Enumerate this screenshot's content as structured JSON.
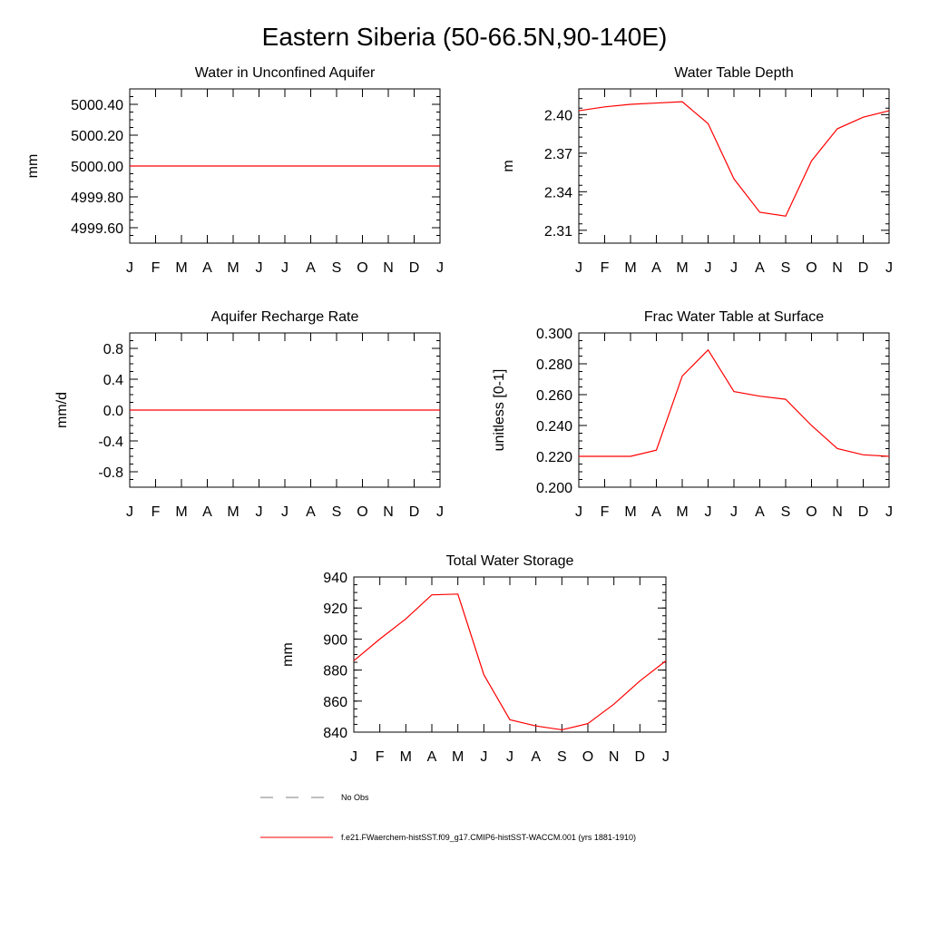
{
  "figure": {
    "title": "Eastern Siberia (50-66.5N,90-140E)",
    "line_color": "#ff0000",
    "obs_color": "#7f7f7f"
  },
  "legend": {
    "obs_label": "No Obs",
    "model_label": "f.e21.FWaerchem-histSST.f09_g17.CMIP6-histSST-WACCM.001 (yrs 1881-1910)"
  },
  "chart_data": [
    {
      "type": "line",
      "title": "Water in Unconfined Aquifer",
      "xlabel": "",
      "ylabel": "mm",
      "categories": [
        "J",
        "F",
        "M",
        "A",
        "M",
        "J",
        "J",
        "A",
        "S",
        "O",
        "N",
        "D",
        "J"
      ],
      "yticks": [
        "5000.40",
        "5000.20",
        "5000.00",
        "4999.80",
        "4999.60"
      ],
      "ylim": [
        4999.5,
        5000.5
      ],
      "series": [
        {
          "values": [
            5000.0,
            5000.0,
            5000.0,
            5000.0,
            5000.0,
            5000.0,
            5000.0,
            5000.0,
            5000.0,
            5000.0,
            5000.0,
            5000.0,
            5000.0
          ]
        }
      ]
    },
    {
      "type": "line",
      "title": "Water Table Depth",
      "xlabel": "",
      "ylabel": "m",
      "categories": [
        "J",
        "F",
        "M",
        "A",
        "M",
        "J",
        "J",
        "A",
        "S",
        "O",
        "N",
        "D",
        "J"
      ],
      "yticks": [
        "2.40",
        "2.37",
        "2.34",
        "2.31"
      ],
      "ylim": [
        2.3,
        2.42
      ],
      "series": [
        {
          "values": [
            2.403,
            2.406,
            2.408,
            2.409,
            2.41,
            2.393,
            2.35,
            2.324,
            2.321,
            2.364,
            2.389,
            2.398,
            2.403
          ]
        }
      ]
    },
    {
      "type": "line",
      "title": "Aquifer Recharge Rate",
      "xlabel": "",
      "ylabel": "mm/d",
      "categories": [
        "J",
        "F",
        "M",
        "A",
        "M",
        "J",
        "J",
        "A",
        "S",
        "O",
        "N",
        "D",
        "J"
      ],
      "yticks": [
        "0.8",
        "0.4",
        "0.0",
        "-0.4",
        "-0.8"
      ],
      "ylim": [
        -1.0,
        1.0
      ],
      "series": [
        {
          "values": [
            0,
            0,
            0,
            0,
            0,
            0,
            0,
            0,
            0,
            0,
            0,
            0,
            0
          ]
        }
      ]
    },
    {
      "type": "line",
      "title": "Frac Water Table at Surface",
      "xlabel": "",
      "ylabel": "unitless [0-1]",
      "categories": [
        "J",
        "F",
        "M",
        "A",
        "M",
        "J",
        "J",
        "A",
        "S",
        "O",
        "N",
        "D",
        "J"
      ],
      "yticks": [
        "0.300",
        "0.280",
        "0.260",
        "0.240",
        "0.220",
        "0.200"
      ],
      "ylim": [
        0.2,
        0.3
      ],
      "series": [
        {
          "values": [
            0.22,
            0.22,
            0.22,
            0.224,
            0.272,
            0.289,
            0.262,
            0.259,
            0.257,
            0.24,
            0.225,
            0.221,
            0.22
          ]
        }
      ]
    },
    {
      "type": "line",
      "title": "Total Water Storage",
      "xlabel": "",
      "ylabel": "mm",
      "categories": [
        "J",
        "F",
        "M",
        "A",
        "M",
        "J",
        "J",
        "A",
        "S",
        "O",
        "N",
        "D",
        "J"
      ],
      "yticks": [
        "940",
        "920",
        "900",
        "880",
        "860",
        "840"
      ],
      "ylim": [
        840,
        940
      ],
      "series": [
        {
          "values": [
            886,
            900,
            913,
            928.5,
            929,
            877,
            848,
            844,
            841.5,
            845.5,
            858,
            873,
            886
          ]
        }
      ]
    }
  ]
}
